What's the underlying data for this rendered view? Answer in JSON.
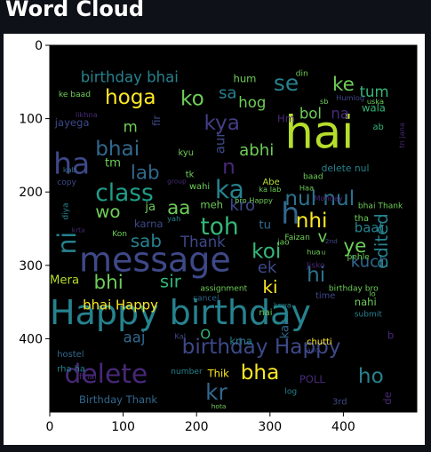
{
  "page": {
    "title": "Word Cloud"
  },
  "chart_data": {
    "type": "wordcloud",
    "title": "",
    "xlabel": "",
    "ylabel": "",
    "xlim": [
      0,
      500
    ],
    "ylim": [
      500,
      0
    ],
    "x_ticks": [
      0,
      100,
      200,
      300,
      400
    ],
    "y_ticks": [
      0,
      100,
      200,
      300,
      400
    ],
    "colors": {
      "background": "#000000",
      "frame_text": "#000000",
      "page_background": "#0e1117"
    },
    "words": [
      {
        "text": "hai",
        "x": 320,
        "y": 140,
        "size": 62,
        "color": "#b5de2b"
      },
      {
        "text": "Happy birthday",
        "x": 0,
        "y": 380,
        "size": 46,
        "color": "#26828e"
      },
      {
        "text": "message",
        "x": 40,
        "y": 308,
        "size": 46,
        "color": "#3e4989"
      },
      {
        "text": "delete",
        "x": 20,
        "y": 460,
        "size": 36,
        "color": "#482878"
      },
      {
        "text": "ha",
        "x": 5,
        "y": 175,
        "size": 40,
        "color": "#3e4989"
      },
      {
        "text": "class",
        "x": 62,
        "y": 212,
        "size": 32,
        "color": "#1f9e89"
      },
      {
        "text": "ka",
        "x": 225,
        "y": 208,
        "size": 34,
        "color": "#26828e"
      },
      {
        "text": "toh",
        "x": 205,
        "y": 258,
        "size": 32,
        "color": "#35b779"
      },
      {
        "text": "birthday Happy",
        "x": 180,
        "y": 420,
        "size": 28,
        "color": "#3e4989"
      },
      {
        "text": "hoga",
        "x": 75,
        "y": 80,
        "size": 28,
        "color": "#fde725"
      },
      {
        "text": "ko",
        "x": 178,
        "y": 82,
        "size": 28,
        "color": "#6ece58"
      },
      {
        "text": "se",
        "x": 305,
        "y": 62,
        "size": 30,
        "color": "#26828e"
      },
      {
        "text": "ke",
        "x": 385,
        "y": 62,
        "size": 26,
        "color": "#6ece58"
      },
      {
        "text": "bhai",
        "x": 62,
        "y": 150,
        "size": 28,
        "color": "#31688e"
      },
      {
        "text": "lab",
        "x": 110,
        "y": 182,
        "size": 26,
        "color": "#31688e"
      },
      {
        "text": "nul nul",
        "x": 320,
        "y": 218,
        "size": 28,
        "color": "#2c728e"
      },
      {
        "text": "nhi",
        "x": 335,
        "y": 248,
        "size": 28,
        "color": "#fde725"
      },
      {
        "text": "koi",
        "x": 275,
        "y": 290,
        "size": 28,
        "color": "#35b779"
      },
      {
        "text": "ye",
        "x": 400,
        "y": 282,
        "size": 26,
        "color": "#6ece58"
      },
      {
        "text": "sab",
        "x": 110,
        "y": 275,
        "size": 24,
        "color": "#26828e"
      },
      {
        "text": "Thank",
        "x": 178,
        "y": 275,
        "size": 20,
        "color": "#3e4989"
      },
      {
        "text": "bhi",
        "x": 60,
        "y": 332,
        "size": 26,
        "color": "#6ece58"
      },
      {
        "text": "sir",
        "x": 150,
        "y": 330,
        "size": 24,
        "color": "#35b779"
      },
      {
        "text": "hi",
        "x": 350,
        "y": 322,
        "size": 28,
        "color": "#2c728e"
      },
      {
        "text": "kuch",
        "x": 410,
        "y": 302,
        "size": 22,
        "color": "#31688e"
      },
      {
        "text": "ki",
        "x": 290,
        "y": 338,
        "size": 24,
        "color": "#fde725"
      },
      {
        "text": "ek",
        "x": 283,
        "y": 310,
        "size": 22,
        "color": "#3e4989"
      },
      {
        "text": "bha",
        "x": 260,
        "y": 455,
        "size": 28,
        "color": "#fde725"
      },
      {
        "text": "kr",
        "x": 212,
        "y": 483,
        "size": 30,
        "color": "#31688e"
      },
      {
        "text": "ho",
        "x": 420,
        "y": 460,
        "size": 28,
        "color": "#26828e"
      },
      {
        "text": "kya",
        "x": 210,
        "y": 115,
        "size": 28,
        "color": "#433e85"
      },
      {
        "text": "abhi",
        "x": 258,
        "y": 150,
        "size": 22,
        "color": "#6ece58"
      },
      {
        "text": "aa",
        "x": 160,
        "y": 230,
        "size": 26,
        "color": "#6ece58"
      },
      {
        "text": "wo",
        "x": 62,
        "y": 235,
        "size": 24,
        "color": "#6ece58"
      },
      {
        "text": "kro",
        "x": 245,
        "y": 225,
        "size": 22,
        "color": "#3e4989"
      },
      {
        "text": "n",
        "x": 235,
        "y": 175,
        "size": 28,
        "color": "#482878"
      },
      {
        "text": "tum",
        "x": 422,
        "y": 70,
        "size": 20,
        "color": "#35b779"
      },
      {
        "text": "bol",
        "x": 340,
        "y": 100,
        "size": 20,
        "color": "#6ece58"
      },
      {
        "text": "na",
        "x": 383,
        "y": 100,
        "size": 20,
        "color": "#482878"
      },
      {
        "text": "hog",
        "x": 257,
        "y": 85,
        "size": 20,
        "color": "#6ece58"
      },
      {
        "text": "sa",
        "x": 230,
        "y": 72,
        "size": 22,
        "color": "#26828e"
      },
      {
        "text": "birthday bhai",
        "x": 42,
        "y": 50,
        "size": 20,
        "color": "#26828e"
      },
      {
        "text": "jayega",
        "x": 7,
        "y": 110,
        "size": 14,
        "color": "#3e4989"
      },
      {
        "text": "bhai Happy",
        "x": 45,
        "y": 360,
        "size": 18,
        "color": "#fde725"
      },
      {
        "text": "Mera",
        "x": 0,
        "y": 325,
        "size": 16,
        "color": "#b5de2b"
      },
      {
        "text": "aaj",
        "x": 100,
        "y": 405,
        "size": 20,
        "color": "#31688e"
      },
      {
        "text": "Birthday Thank",
        "x": 40,
        "y": 488,
        "size": 14,
        "color": "#31688e"
      },
      {
        "text": "karna",
        "x": 115,
        "y": 248,
        "size": 14,
        "color": "#3e4989"
      },
      {
        "text": "meh",
        "x": 205,
        "y": 222,
        "size": 14,
        "color": "#6ece58"
      },
      {
        "text": "ja",
        "x": 130,
        "y": 225,
        "size": 16,
        "color": "#6ece58"
      },
      {
        "text": "m",
        "x": 100,
        "y": 118,
        "size": 20,
        "color": "#6ece58"
      },
      {
        "text": "v",
        "x": 365,
        "y": 268,
        "size": 22,
        "color": "#6ece58"
      },
      {
        "text": "tu",
        "x": 285,
        "y": 250,
        "size": 16,
        "color": "#31688e"
      },
      {
        "text": "baat",
        "x": 415,
        "y": 255,
        "size": 18,
        "color": "#26828e"
      },
      {
        "text": "tha",
        "x": 415,
        "y": 240,
        "size": 12,
        "color": "#6ece58"
      },
      {
        "text": "nahi",
        "x": 415,
        "y": 355,
        "size": 14,
        "color": "#6ece58"
      },
      {
        "text": "wala",
        "x": 425,
        "y": 90,
        "size": 14,
        "color": "#35b779"
      },
      {
        "text": "delete nul",
        "x": 370,
        "y": 172,
        "size": 13,
        "color": "#26828e"
      },
      {
        "text": "hum",
        "x": 250,
        "y": 50,
        "size": 14,
        "color": "#6ece58"
      },
      {
        "text": "time",
        "x": 362,
        "y": 345,
        "size": 12,
        "color": "#3e4989"
      },
      {
        "text": "POLL",
        "x": 340,
        "y": 460,
        "size": 14,
        "color": "#482878"
      },
      {
        "text": "krna",
        "x": 245,
        "y": 408,
        "size": 14,
        "color": "#26828e"
      },
      {
        "text": "Thik",
        "x": 215,
        "y": 452,
        "size": 14,
        "color": "#fde725"
      },
      {
        "text": "chutti",
        "x": 350,
        "y": 408,
        "size": 12,
        "color": "#fde725"
      },
      {
        "text": "edited",
        "x": 460,
        "y": 305,
        "size": 24,
        "color": "#26828e",
        "rotate": -90
      },
      {
        "text": "ni",
        "x": 35,
        "y": 285,
        "size": 34,
        "color": "#26828e",
        "rotate": -90
      },
      {
        "text": "h",
        "x": 315,
        "y": 243,
        "size": 40,
        "color": "#31688e"
      },
      {
        "text": "tm",
        "x": 75,
        "y": 165,
        "size": 16,
        "color": "#6ece58"
      },
      {
        "text": "kar",
        "x": 325,
        "y": 400,
        "size": 16,
        "color": "#31688e",
        "rotate": -90
      },
      {
        "text": "aur",
        "x": 238,
        "y": 148,
        "size": 18,
        "color": "#3e4989",
        "rotate": -90
      },
      {
        "text": "O",
        "x": 205,
        "y": 400,
        "size": 18,
        "color": "#35b779"
      },
      {
        "text": "wahi",
        "x": 190,
        "y": 196,
        "size": 12,
        "color": "#6ece58"
      },
      {
        "text": "Abe",
        "x": 290,
        "y": 190,
        "size": 12,
        "color": "#b5de2b"
      },
      {
        "text": "Kon",
        "x": 85,
        "y": 260,
        "size": 11,
        "color": "#6ece58"
      },
      {
        "text": "fir",
        "x": 150,
        "y": 110,
        "size": 14,
        "color": "#3e4989",
        "rotate": -90
      },
      {
        "text": "kyu",
        "x": 175,
        "y": 150,
        "size": 12,
        "color": "#6ece58"
      },
      {
        "text": "tk",
        "x": 185,
        "y": 180,
        "size": 12,
        "color": "#6ece58"
      },
      {
        "text": "hostel",
        "x": 10,
        "y": 425,
        "size": 12,
        "color": "#31688e"
      },
      {
        "text": "rha ha",
        "x": 10,
        "y": 445,
        "size": 12,
        "color": "#26828e"
      },
      {
        "text": "3rd",
        "x": 385,
        "y": 490,
        "size": 12,
        "color": "#3e4989"
      },
      {
        "text": "de",
        "x": 465,
        "y": 490,
        "size": 14,
        "color": "#482878",
        "rotate": -90
      },
      {
        "text": "assignment",
        "x": 205,
        "y": 335,
        "size": 11,
        "color": "#6ece58"
      },
      {
        "text": "cancel",
        "x": 195,
        "y": 348,
        "size": 11,
        "color": "#31688e"
      },
      {
        "text": "Faizan",
        "x": 320,
        "y": 265,
        "size": 11,
        "color": "#6ece58"
      },
      {
        "text": "bhai Thank",
        "x": 420,
        "y": 222,
        "size": 11,
        "color": "#6ece58"
      },
      {
        "text": "birthday bro",
        "x": 380,
        "y": 335,
        "size": 11,
        "color": "#6ece58"
      },
      {
        "text": "submit",
        "x": 415,
        "y": 370,
        "size": 11,
        "color": "#26828e"
      },
      {
        "text": "Monday",
        "x": 360,
        "y": 212,
        "size": 10,
        "color": "#482878"
      },
      {
        "text": "Humlog",
        "x": 390,
        "y": 75,
        "size": 10,
        "color": "#3e4989"
      },
      {
        "text": "din",
        "x": 335,
        "y": 42,
        "size": 11,
        "color": "#6ece58"
      },
      {
        "text": "ke baad",
        "x": 12,
        "y": 70,
        "size": 11,
        "color": "#6ece58"
      },
      {
        "text": "copy",
        "x": 10,
        "y": 190,
        "size": 11,
        "color": "#3e4989"
      },
      {
        "text": "kab",
        "x": 18,
        "y": 173,
        "size": 10,
        "color": "#31688e"
      },
      {
        "text": "diya",
        "x": 25,
        "y": 238,
        "size": 11,
        "color": "#26828e",
        "rotate": -90
      },
      {
        "text": "number",
        "x": 165,
        "y": 448,
        "size": 11,
        "color": "#26828e"
      },
      {
        "text": "hota",
        "x": 220,
        "y": 495,
        "size": 9,
        "color": "#6ece58"
      },
      {
        "text": "log",
        "x": 320,
        "y": 475,
        "size": 11,
        "color": "#26828e"
      },
      {
        "text": "pehle",
        "x": 405,
        "y": 292,
        "size": 11,
        "color": "#6ece58"
      },
      {
        "text": "Kal",
        "x": 170,
        "y": 400,
        "size": 10,
        "color": "#3e4989"
      },
      {
        "text": "jao",
        "x": 310,
        "y": 272,
        "size": 11,
        "color": "#6ece58"
      },
      {
        "text": "yah",
        "x": 160,
        "y": 240,
        "size": 10,
        "color": "#26828e"
      },
      {
        "text": "Jisko",
        "x": 350,
        "y": 303,
        "size": 11,
        "color": "#482878"
      },
      {
        "text": "bro Happy",
        "x": 252,
        "y": 215,
        "size": 10,
        "color": "#6ece58"
      },
      {
        "text": "ka lab",
        "x": 285,
        "y": 200,
        "size": 10,
        "color": "#6ece58"
      },
      {
        "text": "Haa",
        "x": 340,
        "y": 198,
        "size": 10,
        "color": "#6ece58"
      },
      {
        "text": "baad",
        "x": 345,
        "y": 182,
        "size": 11,
        "color": "#6ece58"
      },
      {
        "text": "ab",
        "x": 440,
        "y": 115,
        "size": 12,
        "color": "#35b779"
      },
      {
        "text": "tn jana",
        "x": 483,
        "y": 140,
        "size": 10,
        "color": "#482878",
        "rotate": -90
      },
      {
        "text": "uska",
        "x": 432,
        "y": 80,
        "size": 10,
        "color": "#6ece58"
      },
      {
        "text": "sb",
        "x": 368,
        "y": 80,
        "size": 10,
        "color": "#6ece58"
      },
      {
        "text": "Hm",
        "x": 310,
        "y": 105,
        "size": 14,
        "color": "#482878"
      },
      {
        "text": "krta",
        "x": 30,
        "y": 255,
        "size": 9,
        "color": "#482878"
      },
      {
        "text": "final",
        "x": 40,
        "y": 455,
        "size": 11,
        "color": "#482878"
      },
      {
        "text": "hua",
        "x": 350,
        "y": 285,
        "size": 10,
        "color": "#6ece58"
      },
      {
        "text": "aao",
        "x": 350,
        "y": 418,
        "size": 9,
        "color": "#3e4989"
      },
      {
        "text": "nai",
        "x": 285,
        "y": 368,
        "size": 12,
        "color": "#6ece58"
      },
      {
        "text": "krwa",
        "x": 305,
        "y": 358,
        "size": 10,
        "color": "#26828e"
      },
      {
        "text": "u",
        "x": 370,
        "y": 285,
        "size": 9,
        "color": "#6ece58"
      },
      {
        "text": "lo",
        "x": 435,
        "y": 342,
        "size": 10,
        "color": "#6ece58"
      },
      {
        "text": "b",
        "x": 460,
        "y": 400,
        "size": 14,
        "color": "#482878"
      },
      {
        "text": "group",
        "x": 160,
        "y": 188,
        "size": 9,
        "color": "#482878"
      },
      {
        "text": "likhna",
        "x": 35,
        "y": 98,
        "size": 10,
        "color": "#482878"
      },
      {
        "text": "2nd",
        "x": 375,
        "y": 270,
        "size": 9,
        "color": "#3e4989"
      }
    ]
  }
}
